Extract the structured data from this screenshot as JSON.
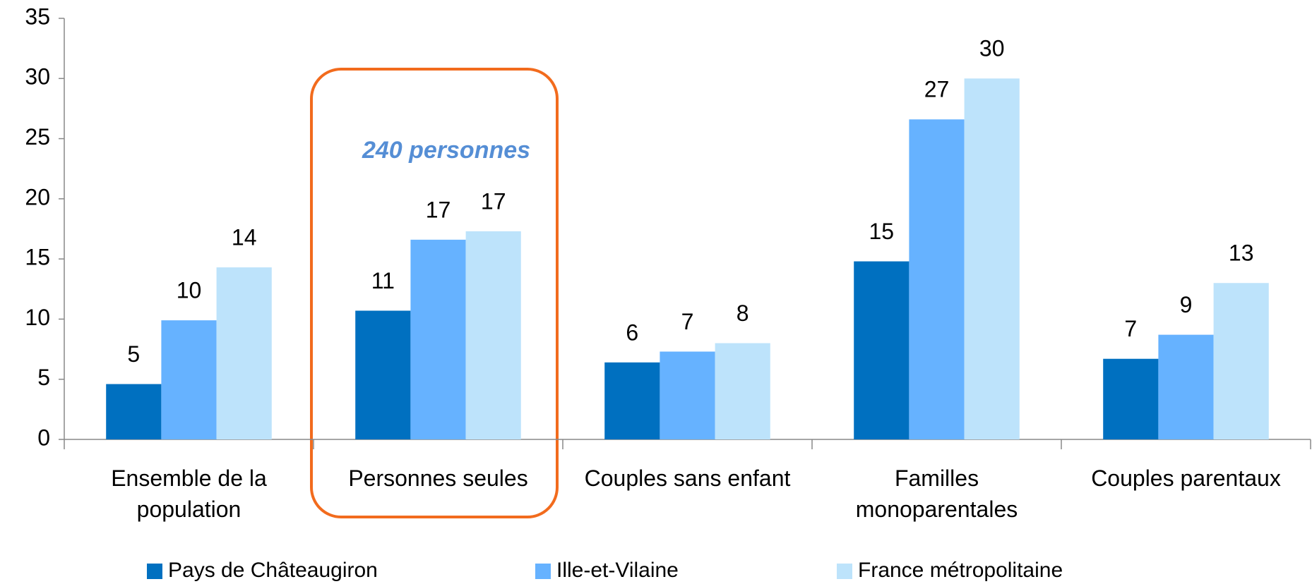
{
  "chart_data": {
    "type": "bar",
    "categories": [
      "Ensemble de la population",
      "Personnes seules",
      "Couples sans enfant",
      "Familles monoparentales",
      "Couples parentaux"
    ],
    "series": [
      {
        "name": "Pays de Châteaugiron",
        "color": "#0070c0",
        "values": [
          4.6,
          10.7,
          6.4,
          14.8,
          6.7
        ],
        "value_labels": [
          "5",
          "11",
          "6",
          "15",
          "7"
        ]
      },
      {
        "name": "Ille-et-Vilaine",
        "color": "#66b2ff",
        "values": [
          9.9,
          16.6,
          7.3,
          26.6,
          8.7
        ],
        "value_labels": [
          "10",
          "17",
          "7",
          "27",
          "9"
        ]
      },
      {
        "name": "France métropolitaine",
        "color": "#bde3fb",
        "values": [
          14.3,
          17.3,
          8.0,
          30.0,
          13.0
        ],
        "value_labels": [
          "14",
          "17",
          "8",
          "30",
          "13"
        ]
      }
    ],
    "annotation": "240 personnes",
    "ylim": [
      0,
      35
    ],
    "yticks": [
      0,
      5,
      10,
      15,
      20,
      25,
      30,
      35
    ],
    "legend": "bottom"
  }
}
